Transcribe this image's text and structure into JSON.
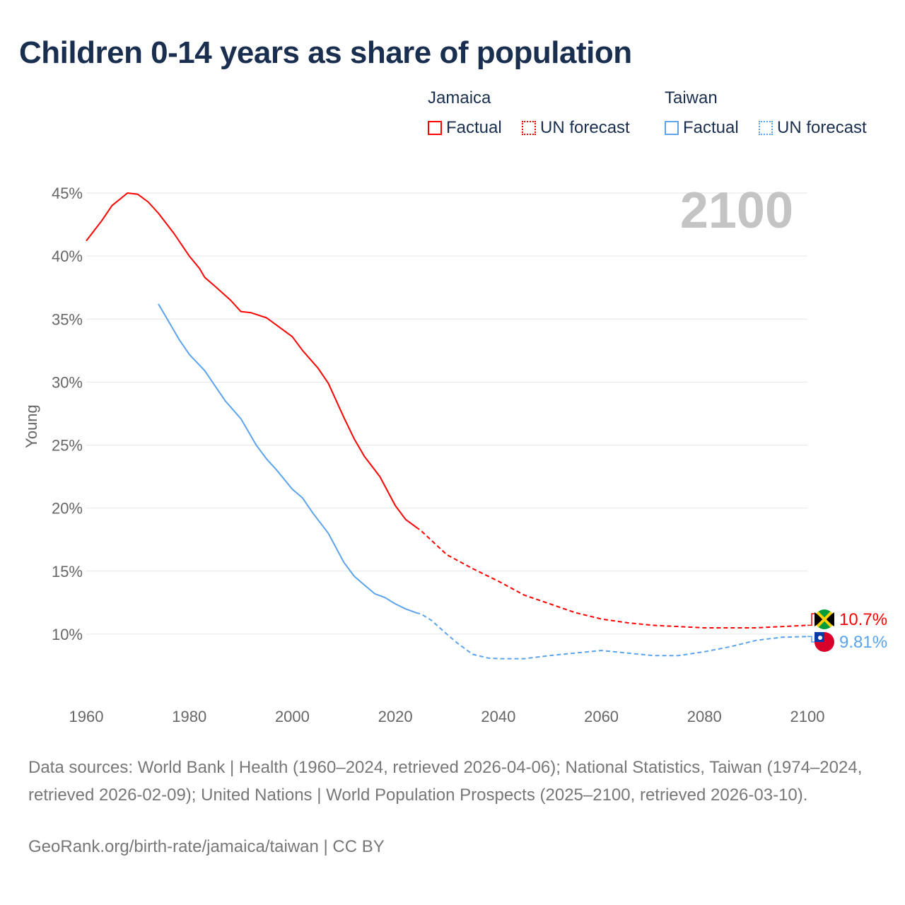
{
  "title": "Children 0-14 years as share of population",
  "legend": {
    "groups": [
      {
        "country": "Jamaica",
        "factual": "Factual",
        "forecast": "UN forecast",
        "color": "#ff0000"
      },
      {
        "country": "Taiwan",
        "factual": "Factual",
        "forecast": "UN forecast",
        "color": "#5ba4ec"
      }
    ]
  },
  "year_label": "2100",
  "chart_data": {
    "type": "line",
    "title": "Children 0-14 years as share of population",
    "xlabel": "",
    "ylabel": "Young",
    "xlim": [
      1960,
      2100
    ],
    "ylim": [
      5,
      45
    ],
    "xticks": [
      "1960",
      "1980",
      "2000",
      "2020",
      "2040",
      "2060",
      "2080",
      "2100"
    ],
    "yticks": [
      "10%",
      "15%",
      "20%",
      "25%",
      "30%",
      "35%",
      "40%",
      "45%"
    ],
    "grid": true,
    "series": [
      {
        "name": "Jamaica",
        "style": "factual",
        "color": "#ff0000",
        "x": [
          1960,
          1963,
          1965,
          1968,
          1970,
          1972,
          1974,
          1977,
          1980,
          1982,
          1983,
          1985,
          1988,
          1990,
          1992,
          1995,
          1997,
          2000,
          2002,
          2005,
          2007,
          2010,
          2012,
          2014,
          2017,
          2020,
          2022,
          2024
        ],
        "y": [
          41.2,
          42.8,
          44.0,
          45.0,
          44.9,
          44.3,
          43.4,
          41.8,
          40.0,
          39.0,
          38.3,
          37.6,
          36.5,
          35.6,
          35.5,
          35.1,
          34.5,
          33.6,
          32.5,
          31.1,
          29.9,
          27.2,
          25.5,
          24.1,
          22.5,
          20.2,
          19.1,
          18.5
        ]
      },
      {
        "name": "Jamaica",
        "style": "UN forecast",
        "color": "#ff0000",
        "x": [
          2024,
          2025,
          2030,
          2035,
          2040,
          2045,
          2050,
          2055,
          2060,
          2065,
          2070,
          2075,
          2080,
          2085,
          2090,
          2095,
          2100
        ],
        "y": [
          18.5,
          18.2,
          16.3,
          15.2,
          14.2,
          13.1,
          12.4,
          11.7,
          11.2,
          10.9,
          10.7,
          10.6,
          10.5,
          10.5,
          10.5,
          10.6,
          10.7
        ]
      },
      {
        "name": "Taiwan",
        "style": "factual",
        "color": "#5ba4ec",
        "x": [
          1974,
          1976,
          1978,
          1980,
          1983,
          1985,
          1987,
          1990,
          1991,
          1993,
          1995,
          1997,
          2000,
          2002,
          2004,
          2007,
          2010,
          2012,
          2014,
          2016,
          2018,
          2020,
          2022,
          2024
        ],
        "y": [
          36.2,
          34.8,
          33.4,
          32.2,
          30.9,
          29.7,
          28.5,
          27.1,
          26.4,
          25.0,
          23.9,
          23.0,
          21.5,
          20.8,
          19.6,
          18.0,
          15.7,
          14.6,
          13.9,
          13.2,
          12.9,
          12.4,
          12.0,
          11.7
        ]
      },
      {
        "name": "Taiwan",
        "style": "UN forecast",
        "color": "#5ba4ec",
        "x": [
          2024,
          2025,
          2027,
          2030,
          2032,
          2035,
          2038,
          2040,
          2045,
          2050,
          2055,
          2060,
          2065,
          2070,
          2075,
          2080,
          2085,
          2090,
          2095,
          2100
        ],
        "y": [
          11.7,
          11.6,
          11.1,
          10.0,
          9.3,
          8.4,
          8.1,
          8.05,
          8.05,
          8.3,
          8.5,
          8.7,
          8.5,
          8.3,
          8.3,
          8.6,
          9.0,
          9.5,
          9.75,
          9.81
        ]
      }
    ],
    "end_labels": [
      {
        "country": "Jamaica",
        "text": "10.7%",
        "color": "#ff0000"
      },
      {
        "country": "Taiwan",
        "text": "9.81%",
        "color": "#5ba4ec"
      }
    ]
  },
  "footer": {
    "sources": "Data sources: World Bank | Health (1960–2024, retrieved 2026-04-06); National Statistics, Taiwan (1974–2024, retrieved 2026-02-09); United Nations | World Population Prospects (2025–2100, retrieved 2026-03-10).",
    "credit": "GeoRank.org/birth-rate/jamaica/taiwan | CC BY"
  }
}
